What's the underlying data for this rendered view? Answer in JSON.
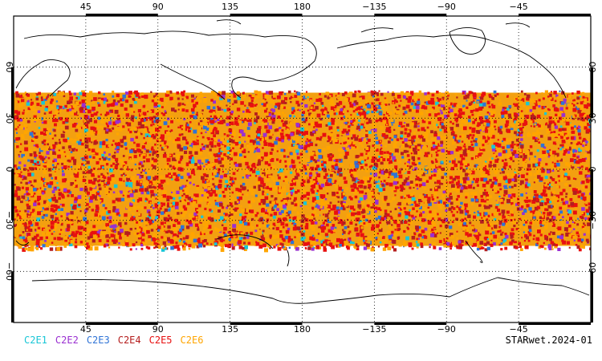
{
  "map": {
    "projection": "cylindrical, centered 180",
    "lon_range": [
      0,
      360
    ],
    "lat_range": [
      -90,
      90
    ],
    "coverage_lat": [
      -45,
      45
    ],
    "lon_ticks": [
      "45",
      "90",
      "135",
      "180",
      "−135",
      "−90",
      "−45"
    ],
    "lat_ticks": [
      "60",
      "30",
      "0",
      "−30",
      "−60"
    ]
  },
  "legend": {
    "items": [
      {
        "label": "C2E1",
        "color": "#19c6d6"
      },
      {
        "label": "C2E2",
        "color": "#9a2fd1"
      },
      {
        "label": "C2E3",
        "color": "#2f73d6"
      },
      {
        "label": "C2E4",
        "color": "#b51e1e"
      },
      {
        "label": "C2E5",
        "color": "#e81010"
      },
      {
        "label": "C2E6",
        "color": "#ffa500"
      }
    ]
  },
  "credit": "STARwet.2024-01"
}
